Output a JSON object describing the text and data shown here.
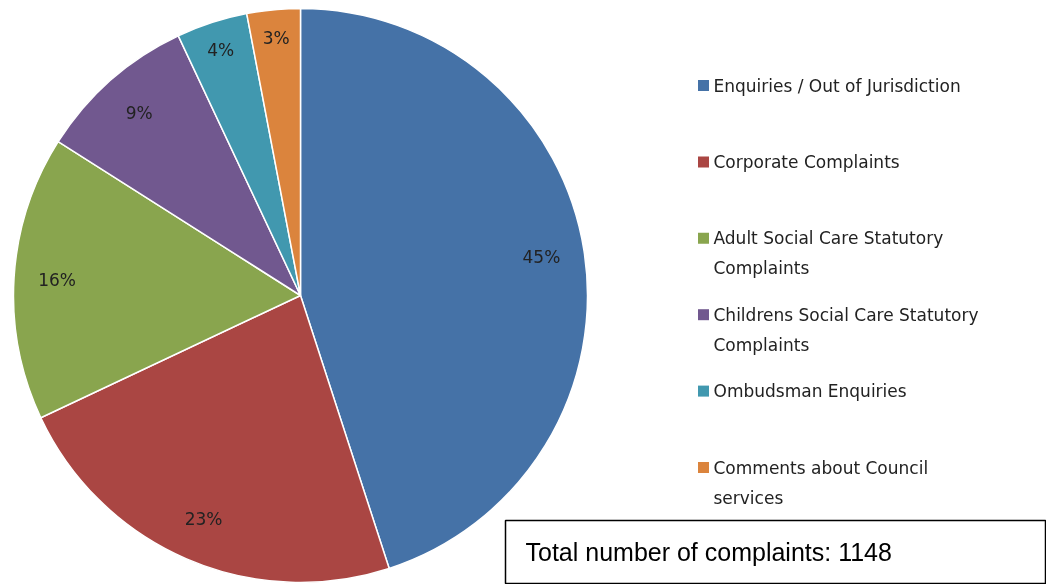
{
  "chart_data": {
    "type": "pie",
    "categories": [
      "Enquiries / Out of Jurisdiction",
      "Corporate Complaints",
      "Adult Social Care Statutory Complaints",
      "Childrens Social Care Statutory Complaints",
      "Ombudsman Enquiries",
      "Comments about Council services"
    ],
    "values": [
      45,
      23,
      16,
      9,
      4,
      3
    ],
    "colors": [
      "#4572a7",
      "#aa4643",
      "#89a54e",
      "#71588f",
      "#4198af",
      "#db843d"
    ],
    "value_labels": [
      "45%",
      "23%",
      "16%",
      "9%",
      "4%",
      "3%"
    ],
    "legend": "right",
    "annotations": [
      "Total number of complaints: 1148"
    ]
  }
}
